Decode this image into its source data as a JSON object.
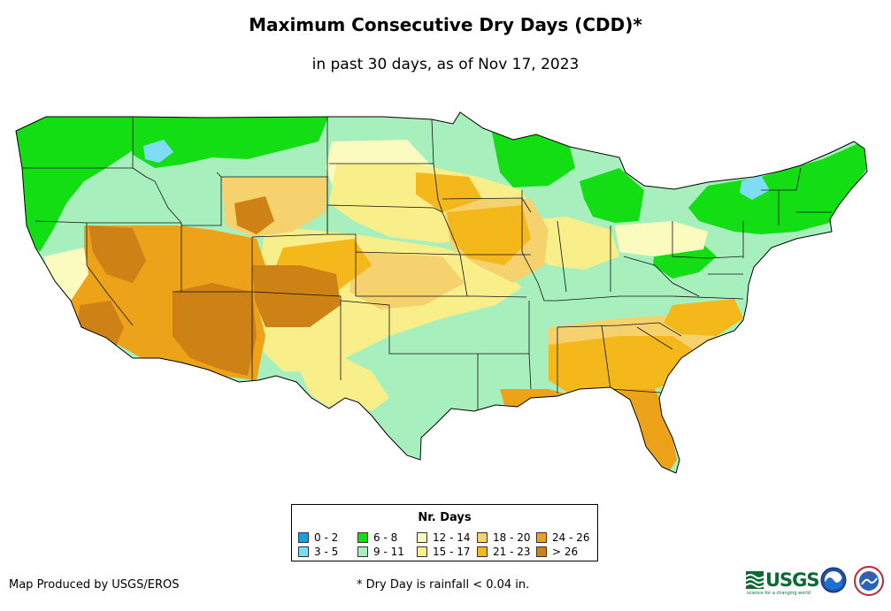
{
  "title": "Maximum Consecutive Dry Days (CDD)*",
  "subtitle": "in past 30 days, as of Nov 17, 2023",
  "legend": {
    "title": "Nr. Days",
    "items": [
      {
        "label": "0 - 2",
        "color": "#1a9fe0"
      },
      {
        "label": "3 - 5",
        "color": "#7fdcf5"
      },
      {
        "label": "6 - 8",
        "color": "#13dd13"
      },
      {
        "label": "9 - 11",
        "color": "#a7f0bd"
      },
      {
        "label": "12 - 14",
        "color": "#fbfbc0"
      },
      {
        "label": "15 - 17",
        "color": "#f8ef8a"
      },
      {
        "label": "18 - 20",
        "color": "#f5d26e"
      },
      {
        "label": "21 - 23",
        "color": "#f4b81b"
      },
      {
        "label": "24 - 26",
        "color": "#eca31a"
      },
      {
        "label": "> 26",
        "color": "#ce8216"
      }
    ]
  },
  "credit": "Map Produced by USGS/EROS",
  "footnote": "* Dry Day is rainfall < 0.04 in.",
  "logos": {
    "usgs": "USGS",
    "usgs_tagline": "science for a changing world",
    "noaa": "noaa-logo",
    "nws": "nws-logo"
  }
}
